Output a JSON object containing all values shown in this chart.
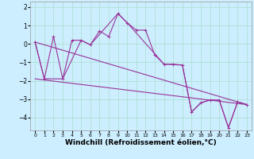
{
  "background_color": "#cceeff",
  "line_color": "#993399",
  "grid_color": "#aaddcc",
  "xlabel": "Windchill (Refroidissement éolien,°C)",
  "xlabel_fontsize": 6.5,
  "xlim": [
    -0.5,
    23.5
  ],
  "ylim": [
    -4.7,
    2.3
  ],
  "yticks": [
    2,
    1,
    0,
    -1,
    -2,
    -3,
    -4
  ],
  "xticks": [
    0,
    1,
    2,
    3,
    4,
    5,
    6,
    7,
    8,
    9,
    10,
    11,
    12,
    13,
    14,
    15,
    16,
    17,
    18,
    19,
    20,
    21,
    22,
    23
  ],
  "series_main": {
    "x": [
      0,
      1,
      2,
      3,
      4,
      5,
      6,
      7,
      8,
      9,
      10,
      11,
      12,
      13,
      14,
      15,
      16,
      17,
      18,
      19,
      20,
      21,
      22,
      23
    ],
    "y": [
      0.1,
      -1.9,
      0.4,
      -1.9,
      0.2,
      0.2,
      -0.05,
      0.7,
      0.4,
      1.65,
      1.15,
      0.75,
      0.75,
      -0.6,
      -1.1,
      -1.1,
      -1.15,
      -3.7,
      -3.2,
      -3.05,
      -3.05,
      -4.55,
      -3.15,
      -3.3
    ]
  },
  "series_trend1": {
    "x": [
      0,
      23
    ],
    "y": [
      0.1,
      -3.3
    ]
  },
  "series_trend2": {
    "x": [
      0,
      23
    ],
    "y": [
      -1.9,
      -3.3
    ]
  },
  "series_smooth": {
    "x": [
      0,
      1,
      3,
      5,
      6,
      9,
      10,
      14,
      16,
      17,
      18,
      19,
      20,
      21,
      22,
      23
    ],
    "y": [
      0.1,
      -1.9,
      -1.9,
      0.2,
      -0.05,
      1.65,
      1.15,
      -1.1,
      -1.15,
      -3.7,
      -3.2,
      -3.05,
      -3.05,
      -4.55,
      -3.15,
      -3.3
    ]
  }
}
